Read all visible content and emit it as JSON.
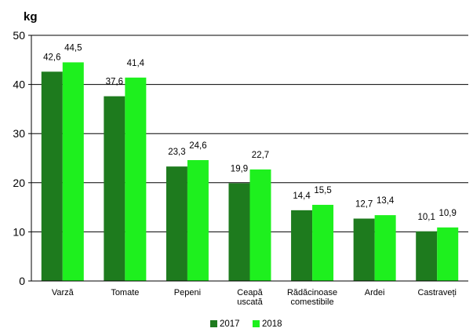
{
  "chart_data": {
    "type": "bar",
    "ylabel": "kg",
    "ylim": [
      0,
      50
    ],
    "yticks": [
      0,
      10,
      20,
      30,
      40,
      50
    ],
    "grid": true,
    "legend_position": "bottom",
    "categories": [
      [
        "Varză"
      ],
      [
        "Tomate"
      ],
      [
        "Pepeni"
      ],
      [
        "Ceapă",
        "uscată"
      ],
      [
        "Rădăcinoase",
        "comestibile"
      ],
      [
        "Ardei"
      ],
      [
        "Castraveți"
      ]
    ],
    "series": [
      {
        "name": "2017",
        "color": "#1e7b1e",
        "values": [
          42.6,
          37.6,
          23.3,
          19.9,
          14.4,
          12.7,
          10.1
        ],
        "labels": [
          "42,6",
          "37,6",
          "23,3",
          "19,9",
          "14,4",
          "12,7",
          "10,1"
        ]
      },
      {
        "name": "2018",
        "color": "#1ef01e",
        "values": [
          44.5,
          41.4,
          24.6,
          22.7,
          15.5,
          13.4,
          10.9
        ],
        "labels": [
          "44,5",
          "41,4",
          "24,6",
          "22,7",
          "15,5",
          "13,4",
          "10,9"
        ]
      }
    ]
  }
}
